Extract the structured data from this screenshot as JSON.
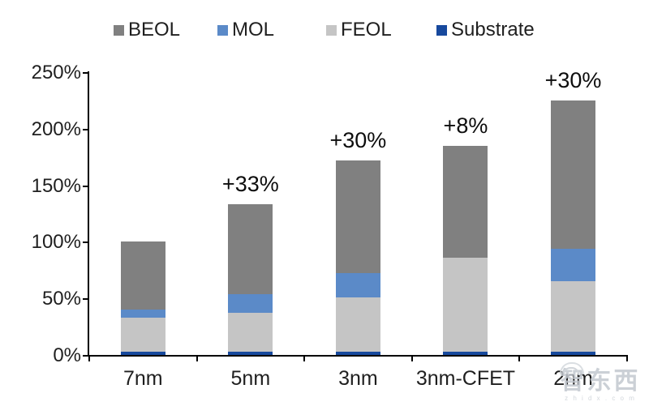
{
  "chart_data": {
    "type": "bar",
    "stacked": true,
    "title": "",
    "xlabel": "",
    "ylabel": "",
    "categories": [
      "7nm",
      "5nm",
      "3nm",
      "3nm-CFET",
      "2nm"
    ],
    "series": [
      {
        "name": "Substrate",
        "color": "#17499D",
        "values": [
          3,
          3,
          3,
          3,
          3
        ]
      },
      {
        "name": "FEOL",
        "color": "#C5C5C5",
        "values": [
          30,
          34,
          48,
          83,
          62
        ]
      },
      {
        "name": "MOL",
        "color": "#5B8AC8",
        "values": [
          7,
          17,
          21,
          0,
          29
        ]
      },
      {
        "name": "BEOL",
        "color": "#808080",
        "values": [
          60,
          79,
          100,
          99,
          131
        ]
      }
    ],
    "totals": [
      100,
      133,
      172,
      185,
      225
    ],
    "bar_labels": [
      "",
      "+33%",
      "+30%",
      "+8%",
      "+30%"
    ],
    "y_ticks": [
      "0%",
      "50%",
      "100%",
      "150%",
      "200%",
      "250%"
    ],
    "y_tick_values": [
      0,
      50,
      100,
      150,
      200,
      250
    ],
    "ylim": [
      0,
      250
    ],
    "grid": false,
    "legend_position": "top",
    "legend": [
      {
        "label": "BEOL",
        "color": "#808080"
      },
      {
        "label": "MOL",
        "color": "#5B8AC8"
      },
      {
        "label": "FEOL",
        "color": "#C5C5C5"
      },
      {
        "label": "Substrate",
        "color": "#17499D"
      }
    ]
  },
  "watermark": {
    "cjk": "智东西",
    "latin": "z h i d x . c o m"
  }
}
